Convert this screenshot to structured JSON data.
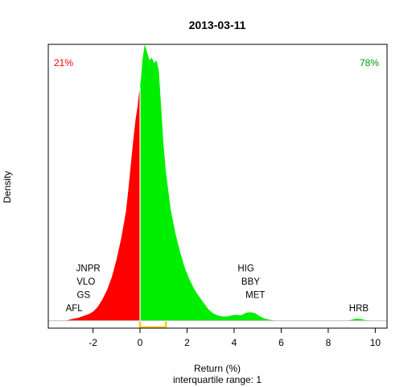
{
  "chart_data": {
    "type": "area",
    "title": "2013-03-11",
    "xlabel": "Return (%)",
    "subtitle": "interquartile range: 1",
    "ylabel": "Density",
    "xlim": [
      -3.9,
      10.5
    ],
    "ylim": [
      -0.014,
      0.52
    ],
    "x_ticks": [
      -2,
      0,
      2,
      4,
      6,
      8,
      10
    ],
    "x_tick_labels": [
      "-2",
      "0",
      "2",
      "4",
      "6",
      "8",
      "10"
    ],
    "split_at": 0,
    "negative_share": "21%",
    "positive_share": "78%",
    "colors": {
      "negative": "#ff0000",
      "positive": "#00ee00",
      "iqr": "#ffcc00",
      "share_negative": "#ff0000",
      "share_positive": "#009900",
      "baseline": "#bebebe",
      "split_line": "#ffffff"
    },
    "density": {
      "x": [
        -3.2,
        -3.0,
        -2.8,
        -2.6,
        -2.4,
        -2.2,
        -2.0,
        -1.8,
        -1.6,
        -1.4,
        -1.2,
        -1.0,
        -0.8,
        -0.6,
        -0.5,
        -0.4,
        -0.3,
        -0.2,
        -0.1,
        -0.05,
        0.0,
        0.05,
        0.1,
        0.2,
        0.3,
        0.4,
        0.5,
        0.6,
        0.7,
        0.8,
        0.9,
        1.0,
        1.1,
        1.2,
        1.3,
        1.5,
        1.7,
        1.9,
        2.1,
        2.3,
        2.5,
        2.7,
        2.9,
        3.1,
        3.3,
        3.5,
        3.7,
        3.9,
        4.1,
        4.3,
        4.5,
        4.7,
        4.9,
        5.1,
        5.3,
        5.5,
        5.8,
        6.2,
        7.0,
        8.0,
        8.8,
        9.0,
        9.2,
        9.4,
        9.6,
        10.0
      ],
      "y": [
        0.0,
        0.002,
        0.004,
        0.006,
        0.009,
        0.012,
        0.017,
        0.026,
        0.04,
        0.058,
        0.082,
        0.115,
        0.155,
        0.205,
        0.245,
        0.29,
        0.335,
        0.375,
        0.405,
        0.425,
        0.44,
        0.46,
        0.49,
        0.52,
        0.505,
        0.49,
        0.495,
        0.485,
        0.49,
        0.47,
        0.4,
        0.33,
        0.28,
        0.245,
        0.21,
        0.165,
        0.13,
        0.1,
        0.078,
        0.06,
        0.046,
        0.034,
        0.022,
        0.014,
        0.01,
        0.008,
        0.008,
        0.01,
        0.011,
        0.01,
        0.015,
        0.016,
        0.014,
        0.008,
        0.004,
        0.002,
        0.0,
        0.0,
        0.0,
        0.0,
        0.0,
        0.002,
        0.004,
        0.003,
        0.001,
        0.0
      ]
    },
    "iqr": [
      0.0,
      1.1
    ],
    "negative_tickers": [
      {
        "label": "JNPR",
        "x": -2.2,
        "y": 0.093
      },
      {
        "label": "VLO",
        "x": -2.3,
        "y": 0.068
      },
      {
        "label": "GS",
        "x": -2.4,
        "y": 0.043
      },
      {
        "label": "AFL",
        "x": -2.8,
        "y": 0.018
      }
    ],
    "positive_tickers": [
      {
        "label": "HIG",
        "x": 4.5,
        "y": 0.093
      },
      {
        "label": "BBY",
        "x": 4.7,
        "y": 0.068
      },
      {
        "label": "MET",
        "x": 4.9,
        "y": 0.043
      },
      {
        "label": "HRB",
        "x": 9.3,
        "y": 0.018
      }
    ]
  }
}
